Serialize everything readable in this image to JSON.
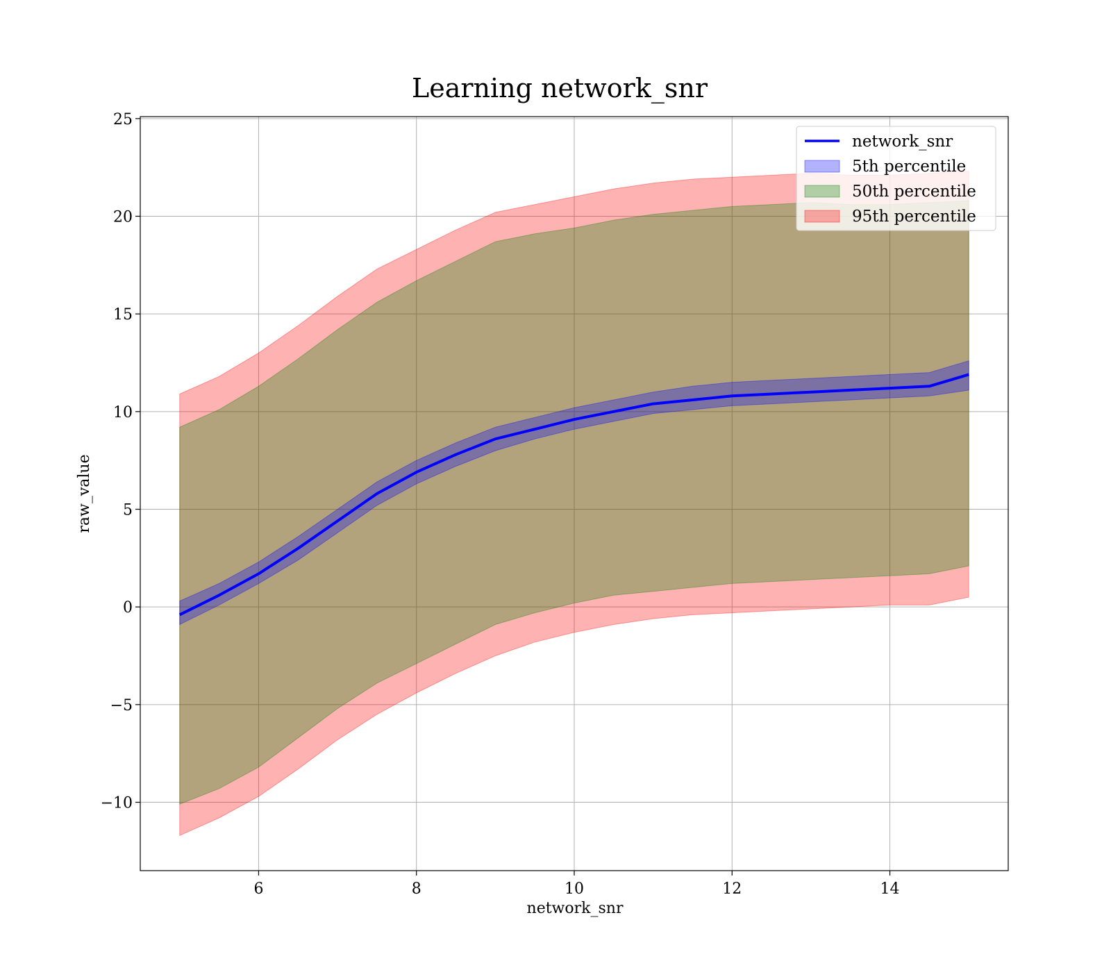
{
  "chart_data": {
    "type": "line",
    "title": "Learning network_snr",
    "xlabel": "network_snr",
    "ylabel": "raw_value",
    "xlim": [
      4.5,
      15.5
    ],
    "ylim": [
      -13.5,
      25.1
    ],
    "xticks": [
      6,
      8,
      10,
      12,
      14
    ],
    "yticks": [
      -10,
      -5,
      0,
      5,
      10,
      15,
      20,
      25
    ],
    "ytick_labels": [
      "−10",
      "−5",
      "0",
      "5",
      "10",
      "15",
      "20",
      "25"
    ],
    "grid": true,
    "legend_position": "top-right",
    "colors": {
      "line": "#0000ff",
      "band_5": "#0000ff",
      "band_50": "#008000",
      "band_95": "#ff0000"
    },
    "x": [
      5.0,
      5.5,
      6.0,
      6.5,
      7.0,
      7.5,
      8.0,
      8.5,
      9.0,
      9.5,
      10.0,
      10.5,
      11.0,
      11.5,
      12.0,
      12.5,
      13.0,
      13.5,
      14.0,
      14.5,
      15.0
    ],
    "series": [
      {
        "name": "network_snr",
        "kind": "line",
        "values": [
          -0.4,
          0.6,
          1.7,
          3.0,
          4.4,
          5.8,
          6.9,
          7.8,
          8.6,
          9.1,
          9.6,
          10.0,
          10.4,
          10.6,
          10.8,
          10.9,
          11.0,
          11.1,
          11.2,
          11.3,
          11.9
        ]
      },
      {
        "name": "5th percentile",
        "kind": "band",
        "lower": [
          -0.9,
          0.1,
          1.2,
          2.4,
          3.8,
          5.2,
          6.3,
          7.2,
          8.0,
          8.6,
          9.1,
          9.5,
          9.9,
          10.1,
          10.3,
          10.4,
          10.5,
          10.6,
          10.7,
          10.8,
          11.1
        ],
        "upper": [
          0.3,
          1.2,
          2.3,
          3.6,
          5.0,
          6.4,
          7.5,
          8.4,
          9.2,
          9.7,
          10.2,
          10.6,
          11.0,
          11.3,
          11.5,
          11.6,
          11.7,
          11.8,
          11.9,
          12.0,
          12.6
        ]
      },
      {
        "name": "50th percentile",
        "kind": "band",
        "lower": [
          -10.1,
          -9.3,
          -8.2,
          -6.7,
          -5.2,
          -3.9,
          -2.9,
          -1.9,
          -0.9,
          -0.3,
          0.2,
          0.6,
          0.8,
          1.0,
          1.2,
          1.3,
          1.4,
          1.5,
          1.6,
          1.7,
          2.1
        ],
        "upper": [
          9.2,
          10.1,
          11.3,
          12.7,
          14.2,
          15.6,
          16.7,
          17.7,
          18.7,
          19.1,
          19.4,
          19.8,
          20.1,
          20.3,
          20.5,
          20.6,
          20.7,
          20.6,
          20.6,
          20.7,
          20.8
        ]
      },
      {
        "name": "95th percentile",
        "kind": "band",
        "lower": [
          -11.7,
          -10.8,
          -9.7,
          -8.3,
          -6.8,
          -5.5,
          -4.4,
          -3.4,
          -2.5,
          -1.8,
          -1.3,
          -0.9,
          -0.6,
          -0.4,
          -0.3,
          -0.2,
          -0.1,
          0.0,
          0.1,
          0.1,
          0.5
        ],
        "upper": [
          10.9,
          11.8,
          13.0,
          14.4,
          15.9,
          17.3,
          18.3,
          19.3,
          20.2,
          20.6,
          21.0,
          21.4,
          21.7,
          21.9,
          22.0,
          22.1,
          22.2,
          22.1,
          22.1,
          22.2,
          22.3
        ]
      }
    ]
  }
}
